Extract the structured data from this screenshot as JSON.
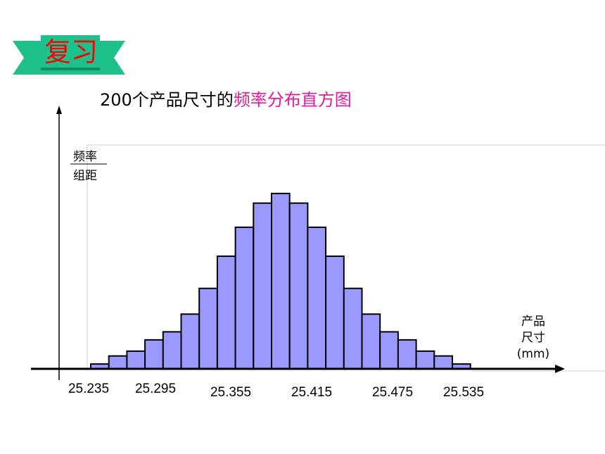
{
  "banner": {
    "label": "复习",
    "colors": {
      "ribbon": "#1ec08c",
      "ribbon_dark": "#0e8f66",
      "text": "#ff0000"
    }
  },
  "chart_data": {
    "type": "bar",
    "title_plain": "200个产品尺寸的",
    "title_highlight": "频率分布直方图",
    "ylabel_top": "频率",
    "ylabel_bottom": "组距",
    "xlabel_lines": [
      "产品",
      "尺寸",
      "(mm)"
    ],
    "xticks": [
      "25.235",
      "25.295",
      "25.355",
      "25.415",
      "25.475",
      "25.535"
    ],
    "xtick_values": [
      25.235,
      25.295,
      25.355,
      25.415,
      25.475,
      25.535
    ],
    "bin_start": 25.235,
    "bin_width": 0.01,
    "values": [
      0.3,
      0.8,
      1.1,
      1.8,
      2.3,
      3.4,
      5.0,
      7.0,
      8.8,
      10.3,
      10.9,
      10.3,
      8.8,
      7.0,
      5.0,
      3.4,
      2.3,
      1.8,
      1.1,
      0.8,
      0.3
    ],
    "ylim": [
      0,
      14
    ],
    "colors": {
      "bar_fill": "#9999ff",
      "bar_stroke": "#000000",
      "highlight": "#e8199a"
    }
  }
}
